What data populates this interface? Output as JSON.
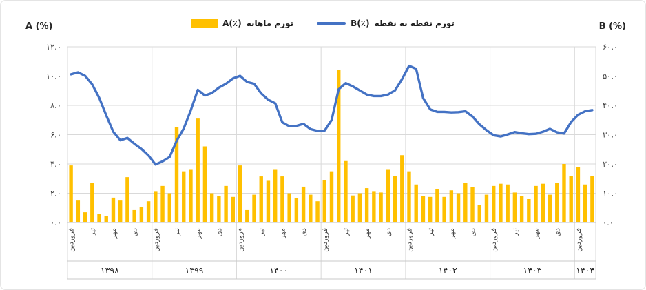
{
  "page": {
    "background": "#ffffff",
    "border_color": "#e4e4e4"
  },
  "legend": {
    "items": [
      {
        "tag": "A(٪)",
        "text": "تورم ماهانه",
        "marker": "bar-swatch",
        "color": "#FFC000"
      },
      {
        "tag": "B(٪)",
        "text": "تورم نقطه به نقطه",
        "marker": "line-swatch",
        "color": "#4472C4"
      }
    ]
  },
  "chart_data": {
    "type": "combo-bar-line",
    "title": "",
    "grid": true,
    "gridline_color": "#D9D9D9",
    "axis_line_color": "#BFBFBF",
    "category_line_color": "#C9C9C9",
    "text_color": "#404040",
    "years": [
      {
        "label": "۱۳۹۸",
        "months": 12
      },
      {
        "label": "۱۳۹۹",
        "months": 12
      },
      {
        "label": "۱۴۰۰",
        "months": 12
      },
      {
        "label": "۱۴۰۱",
        "months": 12
      },
      {
        "label": "۱۴۰۲",
        "months": 12
      },
      {
        "label": "۱۴۰۳",
        "months": 12
      },
      {
        "label": "۱۴۰۴",
        "months": 3
      }
    ],
    "quarter_labels": [
      "فروردین",
      "تیر",
      "مهر",
      "دی"
    ],
    "left_axis": {
      "title": "A (%)",
      "min": 0,
      "max": 12,
      "step": 2,
      "tick_labels": [
        "۰.۰",
        "۲.۰",
        "۴.۰",
        "۶.۰",
        "۸.۰",
        "۱۰.۰",
        "۱۲.۰"
      ]
    },
    "right_axis": {
      "title": "B (%)",
      "min": 0,
      "max": 60,
      "step": 10,
      "tick_labels": [
        "۰.۰",
        "۱۰.۰",
        "۲۰.۰",
        "۳۰.۰",
        "۴۰.۰",
        "۵۰.۰",
        "۶۰.۰"
      ]
    },
    "series": [
      {
        "name": "تورم ماهانه A(٪)",
        "type": "bar",
        "axis": "left",
        "color": "#FFC000",
        "values": [
          3.9,
          1.5,
          0.7,
          2.7,
          0.6,
          0.45,
          1.7,
          1.5,
          3.1,
          0.85,
          1.05,
          1.45,
          2.1,
          2.5,
          2.0,
          6.5,
          3.5,
          3.6,
          7.1,
          5.2,
          2.0,
          1.8,
          2.5,
          1.75,
          3.9,
          0.85,
          1.9,
          3.15,
          2.85,
          3.6,
          3.15,
          2.0,
          1.65,
          2.45,
          1.9,
          1.45,
          2.9,
          3.5,
          10.4,
          4.2,
          1.85,
          2.0,
          2.35,
          2.1,
          2.05,
          3.6,
          3.2,
          4.6,
          3.5,
          2.6,
          1.8,
          1.75,
          2.3,
          1.75,
          2.2,
          2.0,
          2.7,
          2.4,
          1.2,
          1.9,
          2.5,
          2.65,
          2.6,
          2.05,
          1.8,
          1.6,
          2.5,
          2.65,
          1.9,
          2.7,
          4.0,
          3.2,
          3.8,
          2.6,
          3.2
        ]
      },
      {
        "name": "تورم نقطه به نقطه B(٪)",
        "type": "line",
        "axis": "right",
        "color": "#4472C4",
        "values": [
          50.6,
          51.3,
          50.1,
          47.2,
          42.6,
          36.6,
          31.0,
          28.1,
          28.9,
          26.9,
          25.1,
          22.9,
          19.8,
          20.9,
          22.4,
          27.9,
          32.1,
          38.3,
          45.3,
          43.4,
          44.2,
          46.1,
          47.4,
          49.2,
          50.1,
          48.0,
          47.4,
          44.1,
          41.9,
          40.7,
          34.2,
          32.9,
          33.0,
          33.7,
          31.9,
          31.3,
          31.4,
          35.0,
          45.5,
          47.6,
          46.5,
          45.1,
          43.7,
          43.2,
          43.2,
          43.7,
          45.1,
          49.0,
          53.5,
          52.5,
          42.5,
          38.6,
          37.8,
          37.8,
          37.6,
          37.7,
          38.0,
          36.2,
          33.5,
          31.5,
          29.8,
          29.4,
          30.1,
          30.9,
          30.5,
          30.2,
          30.3,
          31.0,
          32.0,
          30.8,
          30.4,
          34.3,
          36.8,
          38.0,
          38.4
        ]
      }
    ]
  }
}
